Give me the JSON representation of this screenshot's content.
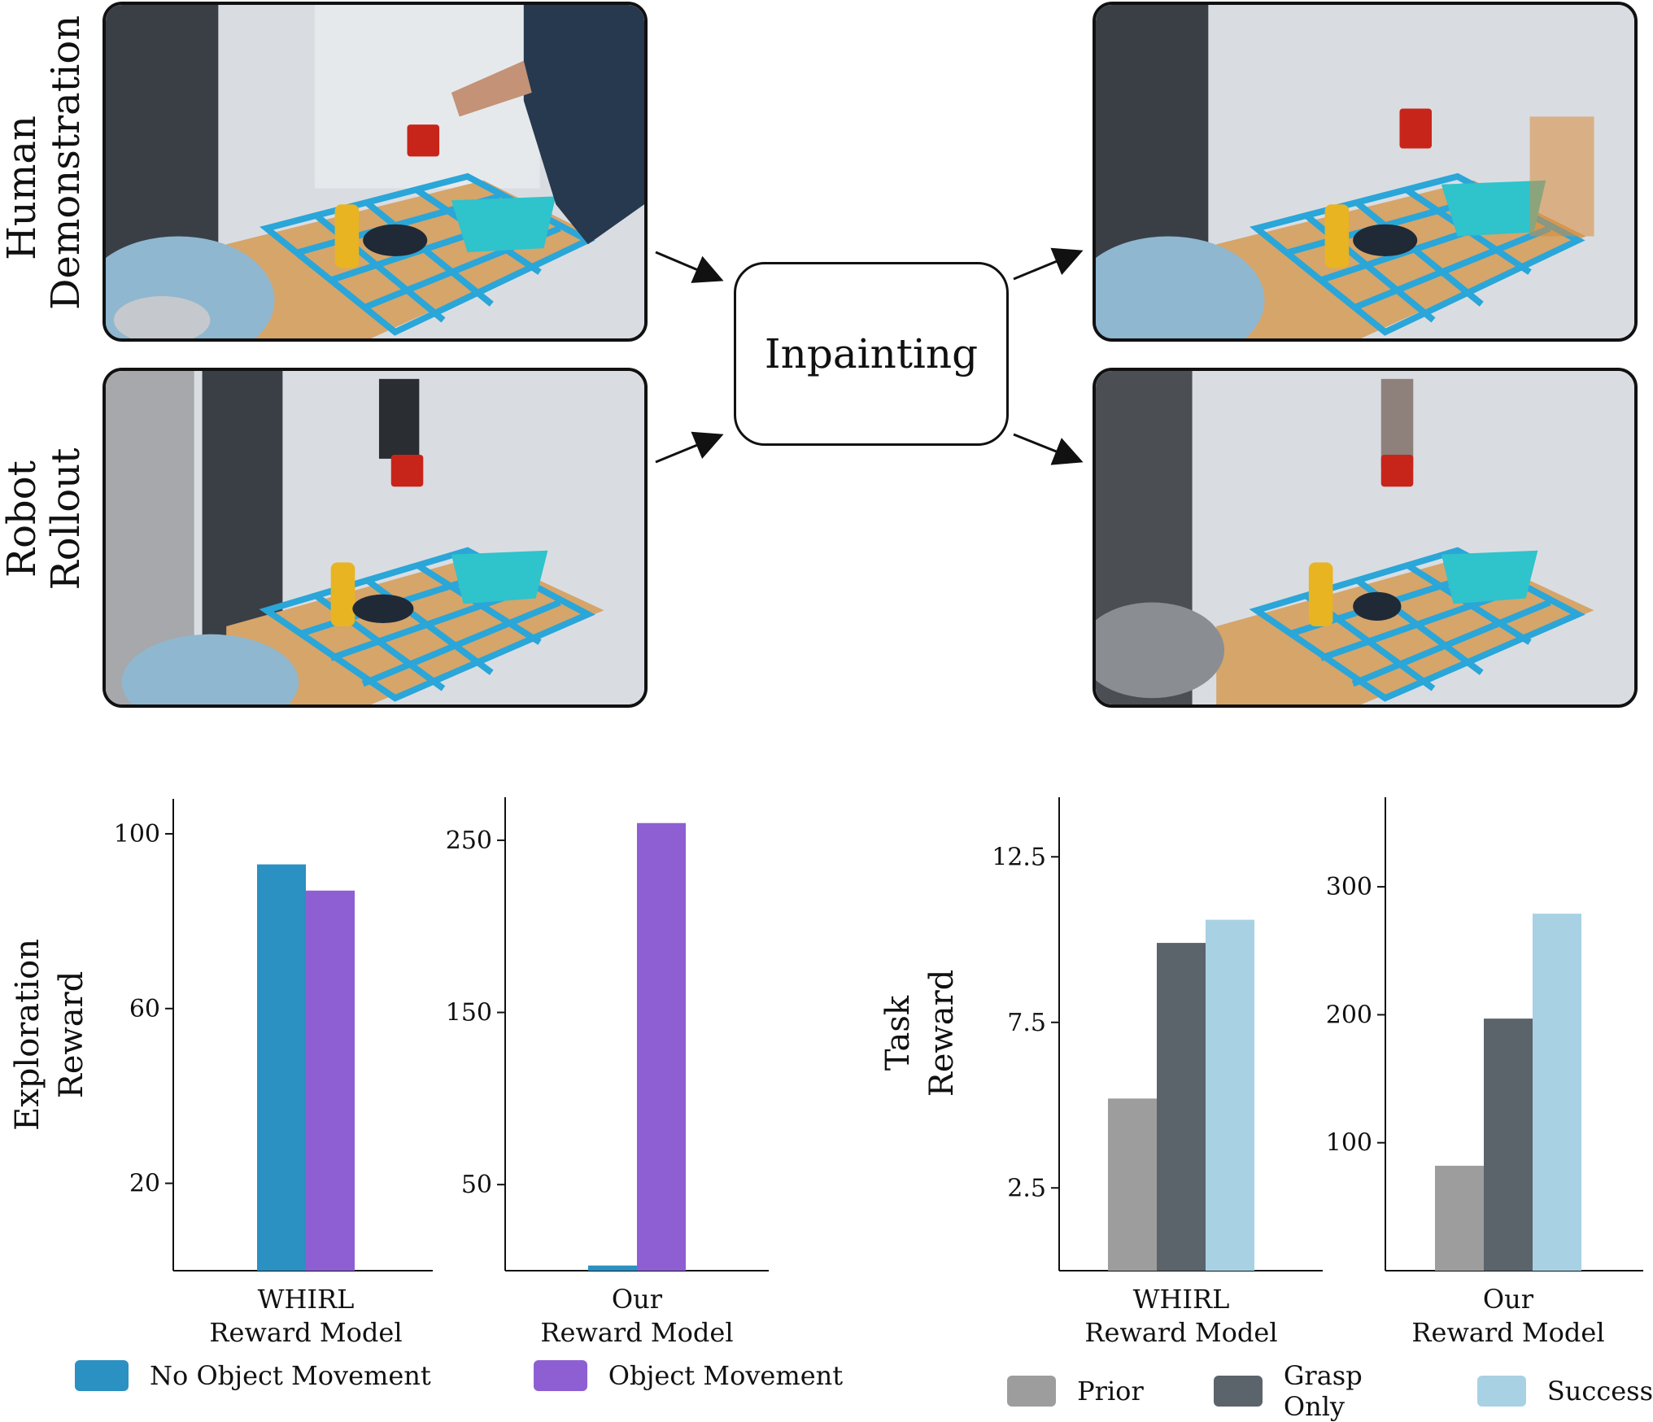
{
  "labels": {
    "human_demo": [
      "Human",
      "Demonstration"
    ],
    "robot_rollout": [
      "Robot",
      "Rollout"
    ],
    "inpainting": "Inpainting"
  },
  "legend": {
    "exploration": [
      {
        "label": "No Object Movement",
        "color": "#2b90c2"
      },
      {
        "label": "Object Movement",
        "color": "#8e5fd3"
      }
    ],
    "task": [
      {
        "label": "Prior",
        "color": "#9d9d9d"
      },
      {
        "label": "Grasp Only",
        "color": "#5b636b"
      },
      {
        "label": "Success",
        "color": "#a8d1e4"
      }
    ]
  },
  "chart_data": [
    {
      "type": "bar",
      "ylabel": "Exploration Reward",
      "yticks": [
        20,
        60,
        100
      ],
      "ylim": [
        0,
        108
      ],
      "categories": [
        "WHIRL Reward Model"
      ],
      "series": [
        {
          "name": "No Object Movement",
          "values": [
            93
          ]
        },
        {
          "name": "Object Movement",
          "values": [
            87
          ]
        }
      ]
    },
    {
      "type": "bar",
      "ylabel": "",
      "yticks": [
        50,
        150,
        250
      ],
      "ylim": [
        0,
        275
      ],
      "categories": [
        "Our Reward Model"
      ],
      "series": [
        {
          "name": "No Object Movement",
          "values": [
            3
          ]
        },
        {
          "name": "Object Movement",
          "values": [
            260
          ]
        }
      ]
    },
    {
      "type": "bar",
      "ylabel": "Task Reward",
      "yticks": [
        2.5,
        7.5,
        12.5
      ],
      "ylim": [
        0,
        14.3
      ],
      "categories": [
        "WHIRL Reward Model"
      ],
      "series": [
        {
          "name": "Prior",
          "values": [
            5.2
          ]
        },
        {
          "name": "Grasp Only",
          "values": [
            9.9
          ]
        },
        {
          "name": "Success",
          "values": [
            10.6
          ]
        }
      ]
    },
    {
      "type": "bar",
      "ylabel": "",
      "yticks": [
        100,
        200,
        300
      ],
      "ylim": [
        0,
        370
      ],
      "categories": [
        "Our Reward Model"
      ],
      "series": [
        {
          "name": "Prior",
          "values": [
            82
          ]
        },
        {
          "name": "Grasp Only",
          "values": [
            197
          ]
        },
        {
          "name": "Success",
          "values": [
            279
          ]
        }
      ]
    }
  ]
}
